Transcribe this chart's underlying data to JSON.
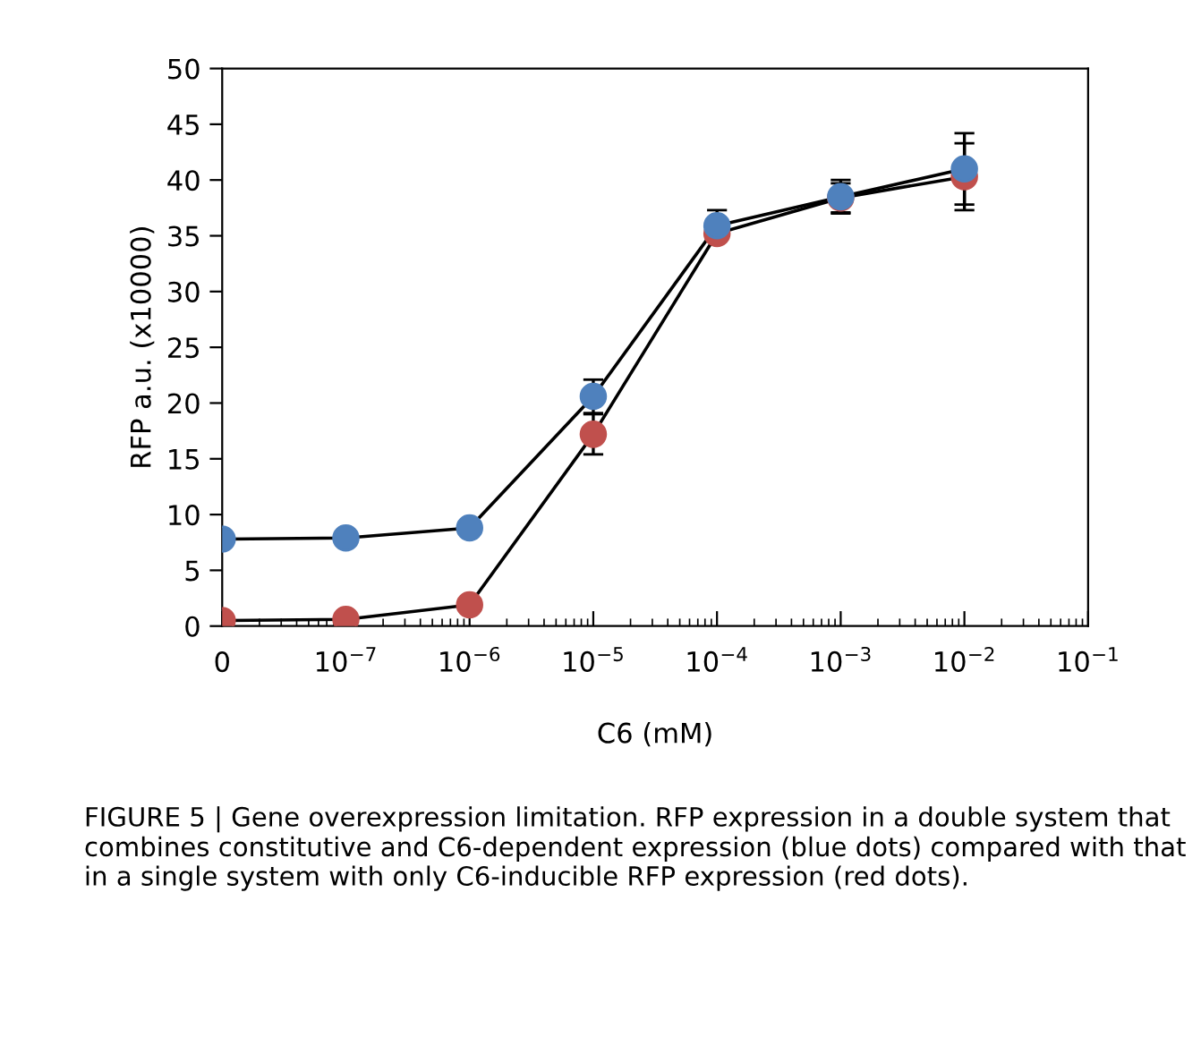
{
  "chart_data": {
    "type": "line",
    "xlabel": "C6 (mM)",
    "ylabel": "RFP a.u. (x10000)",
    "x": [
      1e-08,
      1e-07,
      1e-06,
      1e-05,
      0.0001,
      0.001,
      0.01
    ],
    "series": [
      {
        "color": "#c0504d",
        "values": [
          0.5,
          0.6,
          1.9,
          17.2,
          35.2,
          38.4,
          40.3
        ],
        "errors": [
          null,
          null,
          null,
          1.8,
          null,
          1.3,
          3.0
        ]
      },
      {
        "color": "#4f81bd",
        "values": [
          7.8,
          7.9,
          8.8,
          20.6,
          35.9,
          38.5,
          41.0
        ],
        "errors": [
          null,
          null,
          null,
          1.5,
          1.4,
          1.5,
          3.2
        ]
      }
    ],
    "log": "x",
    "xlim": [
      1e-08,
      0.1
    ],
    "xticks": [
      {
        "value": 1e-08,
        "label": "0"
      },
      {
        "value": 1e-07,
        "label": "10$^{−7}$"
      },
      {
        "value": 1e-06,
        "label": "10$^{−6}$"
      },
      {
        "value": 1e-05,
        "label": "10$^{−5}$"
      },
      {
        "value": 0.0001,
        "label": "10$^{−4}$"
      },
      {
        "value": 0.001,
        "label": "10$^{−3}$"
      },
      {
        "value": 0.01,
        "label": "10$^{−2}$"
      },
      {
        "value": 0.1,
        "label": "10$^{−1}$"
      }
    ],
    "ylim": [
      0,
      50
    ],
    "yticks": [
      0,
      5,
      10,
      15,
      20,
      25,
      30,
      35,
      40,
      45,
      50
    ],
    "grid": false,
    "marker": "circle",
    "line_style": "solid",
    "annotations": [
      "FIGURE 5 | Gene overexpression limitation. RFP expression in a double system that combines constitutive and C6-dependent expression (blue dots) compared with that in a single system with only C6-inducible RFP expression (red dots)."
    ]
  }
}
